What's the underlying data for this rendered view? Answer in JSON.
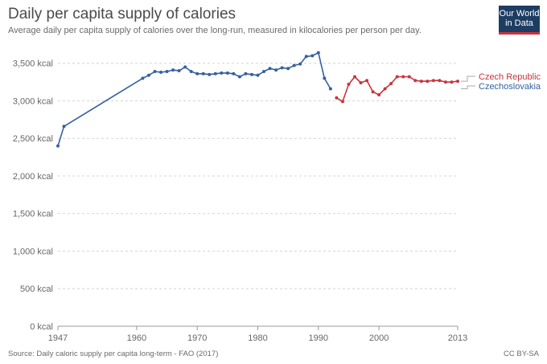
{
  "header": {
    "title": "Daily per capita supply of calories",
    "subtitle": "Average daily per capita supply of calories over the long-run, measured in kilocalories per person per day."
  },
  "logo": {
    "line1": "Our World",
    "line2": "in Data"
  },
  "footer": {
    "source": "Source: Daily caloric supply per capita long-term - FAO (2017)",
    "license": "CC BY-SA"
  },
  "chart_data": {
    "type": "line",
    "title": "Daily per capita supply of calories",
    "subtitle": "Average daily per capita supply of calories over the long-run, measured in kilocalories per person per day.",
    "xlim": [
      1947,
      2013
    ],
    "ylim": [
      0,
      3700
    ],
    "x_ticks": [
      1947,
      1960,
      1970,
      1980,
      1990,
      2000,
      2013
    ],
    "y_ticks": [
      0,
      500,
      1000,
      1500,
      2000,
      2500,
      3000,
      3500
    ],
    "y_tick_labels": [
      "0 kcal",
      "500 kcal",
      "1,000 kcal",
      "1,500 kcal",
      "2,000 kcal",
      "2,500 kcal",
      "3,000 kcal",
      "3,500 kcal"
    ],
    "grid": "horizontal dashed",
    "legend": "right end labels",
    "series": [
      {
        "name": "Czechoslovakia",
        "color": "#3560a0",
        "x": [
          1947,
          1948,
          1961,
          1962,
          1963,
          1964,
          1965,
          1966,
          1967,
          1968,
          1969,
          1970,
          1971,
          1972,
          1973,
          1974,
          1975,
          1976,
          1977,
          1978,
          1979,
          1980,
          1981,
          1982,
          1983,
          1984,
          1985,
          1986,
          1987,
          1988,
          1989,
          1990,
          1991,
          1992
        ],
        "y": [
          2400,
          2660,
          3300,
          3340,
          3390,
          3380,
          3390,
          3410,
          3400,
          3450,
          3390,
          3360,
          3360,
          3350,
          3360,
          3370,
          3370,
          3360,
          3320,
          3360,
          3350,
          3340,
          3390,
          3430,
          3410,
          3440,
          3430,
          3470,
          3490,
          3590,
          3600,
          3640,
          3300,
          3160
        ]
      },
      {
        "name": "Czech Republic",
        "color": "#c9343c",
        "x": [
          1993,
          1994,
          1995,
          1996,
          1997,
          1998,
          1999,
          2000,
          2001,
          2002,
          2003,
          2004,
          2005,
          2006,
          2007,
          2008,
          2009,
          2010,
          2011,
          2012,
          2013
        ],
        "y": [
          3040,
          2990,
          3220,
          3320,
          3240,
          3270,
          3120,
          3080,
          3160,
          3230,
          3320,
          3320,
          3320,
          3270,
          3260,
          3260,
          3270,
          3270,
          3250,
          3250,
          3260
        ]
      }
    ]
  }
}
